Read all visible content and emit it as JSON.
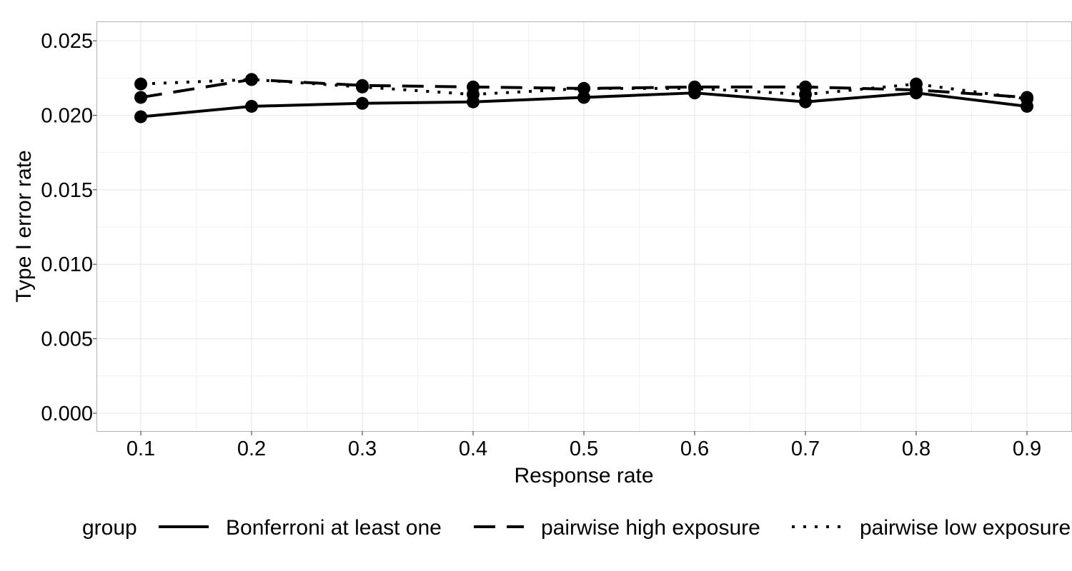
{
  "chart_data": {
    "type": "line",
    "xlabel": "Response rate",
    "ylabel": "Type I error rate",
    "x": [
      0.1,
      0.2,
      0.3,
      0.4,
      0.5,
      0.6,
      0.7,
      0.8,
      0.9
    ],
    "x_tick_labels": [
      "0.1",
      "0.2",
      "0.3",
      "0.4",
      "0.5",
      "0.6",
      "0.7",
      "0.8",
      "0.9"
    ],
    "xlim": [
      0.06,
      0.94
    ],
    "y_ticks": [
      0,
      0.005,
      0.01,
      0.015,
      0.02,
      0.025
    ],
    "y_tick_labels": [
      "0.000",
      "0.005",
      "0.010",
      "0.015",
      "0.020",
      "0.025"
    ],
    "ylim": [
      -0.0012,
      0.0263
    ],
    "grid": true,
    "legend": {
      "title": "group",
      "position": "bottom"
    },
    "series": [
      {
        "name": "Bonferroni at least one",
        "linestyle": "solid",
        "values": [
          0.0199,
          0.0206,
          0.0208,
          0.0209,
          0.0212,
          0.0215,
          0.0209,
          0.0215,
          0.0206
        ]
      },
      {
        "name": "pairwise high exposure",
        "linestyle": "dashed",
        "values": [
          0.0212,
          0.0224,
          0.022,
          0.0219,
          0.0218,
          0.0219,
          0.0219,
          0.0217,
          0.0212
        ]
      },
      {
        "name": "pairwise low exposure",
        "linestyle": "dotted",
        "values": [
          0.0221,
          0.0224,
          0.0219,
          0.0214,
          0.0218,
          0.0218,
          0.0214,
          0.0221,
          0.0211
        ]
      }
    ]
  }
}
